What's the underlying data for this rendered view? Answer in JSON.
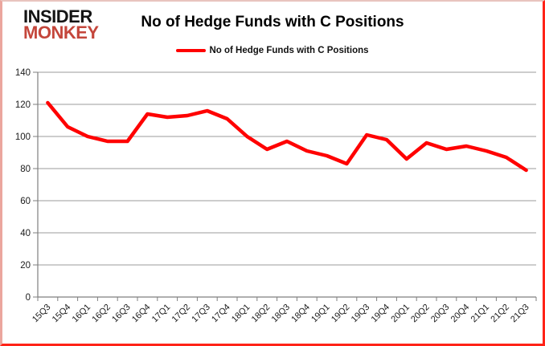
{
  "logo": {
    "line1": "INSIDER",
    "line2": "MONKEY",
    "line1_color": "#141414",
    "line2_color": "#c4463b"
  },
  "chart_data": {
    "type": "line",
    "title": "No of Hedge Funds with C Positions",
    "legend_position": "top",
    "categories": [
      "15Q3",
      "15Q4",
      "16Q1",
      "16Q2",
      "16Q3",
      "16Q4",
      "17Q1",
      "17Q2",
      "17Q3",
      "17Q4",
      "18Q1",
      "18Q2",
      "18Q3",
      "18Q4",
      "19Q1",
      "19Q2",
      "19Q3",
      "19Q4",
      "20Q1",
      "20Q2",
      "20Q3",
      "20Q4",
      "21Q1",
      "21Q2",
      "21Q3"
    ],
    "series": [
      {
        "name": "No of Hedge Funds with C Positions",
        "color": "#ff0000",
        "values": [
          121,
          106,
          100,
          97,
          97,
          114,
          112,
          113,
          116,
          111,
          100,
          92,
          97,
          91,
          88,
          83,
          101,
          98,
          86,
          96,
          92,
          94,
          91,
          87,
          79
        ]
      }
    ],
    "xlabel": "",
    "ylabel": "",
    "ylim": [
      0,
      140
    ],
    "yticks": [
      0,
      20,
      40,
      60,
      80,
      100,
      120,
      140
    ],
    "grid": true,
    "gridline_color": "#9b9b9b",
    "axis_color": "#7f7f7f",
    "tick_label_color": "#1a1a1a"
  }
}
